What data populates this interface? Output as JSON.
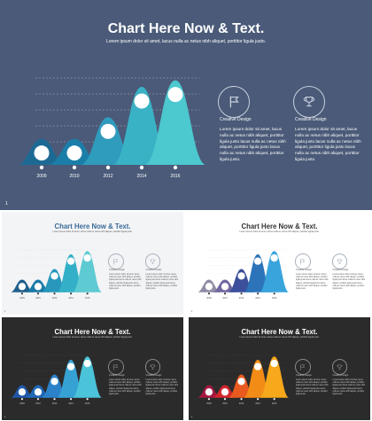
{
  "title": "Chart Here Now & Text.",
  "subtitle": "Lorem ipsum dolor sit amet, lacus nulla ac netus nibh aliquet, porttitor ligula justo.",
  "years": [
    "2009",
    "2010",
    "2012",
    "2014",
    "2016"
  ],
  "columns": [
    {
      "icon": "flag-icon",
      "label": "Creative Design",
      "body": "Lorem ipsum dolor sit amet, lacus nulla ac netus nibh aliquet, porttitor ligula justo lacus nulla ac netus nibh aliquet, porttitor ligula justo lacus nulla ac netus nibh aliquet, porttitor ligula justo."
    },
    {
      "icon": "trophy-icon",
      "label": "Creative Design",
      "body": "Lorem ipsum dolor sit amet, lacus nulla ac netus nibh aliquet, porttitor ligula justo lacus nulla ac netus nibh aliquet, porttitor ligula justo lacus nulla ac netus nibh aliquet, porttitor ligula justo."
    }
  ],
  "page_number": "1",
  "chart_data": {
    "type": "area",
    "categories": [
      "2009",
      "2010",
      "2012",
      "2014",
      "2016"
    ],
    "values": [
      1.2,
      1.2,
      2.2,
      3.6,
      3.9
    ],
    "ylim": [
      0,
      4.5
    ],
    "grid": true
  },
  "slides": [
    {
      "name": "slide-main-slate",
      "bg": "#4a5a78",
      "title_color": "#ffffff",
      "text_color": "#ffffff",
      "grid_color": "#8a97b0",
      "dot_color": "#ffffff",
      "icon_ring": "#c9d0de",
      "peaks": [
        "#1c6a94",
        "#1b7ea8",
        "#2f9bbd",
        "#3ab2c6",
        "#4cc8cf"
      ]
    },
    {
      "name": "slide-light-blue",
      "bg": "#f3f4f6",
      "title_color": "#3a6b96",
      "text_color": "#555555",
      "grid_color": "#d8dce2",
      "dot_color": "#333333",
      "icon_ring": "#aab2bd",
      "peaks": [
        "#1f5f8b",
        "#1a7aa6",
        "#2797bb",
        "#33b0c7",
        "#5ecad2"
      ]
    },
    {
      "name": "slide-white-purple",
      "bg": "#ffffff",
      "title_color": "#333333",
      "text_color": "#555555",
      "grid_color": "#e0e0e0",
      "dot_color": "#333333",
      "icon_ring": "#aab2bd",
      "peaks": [
        "#8f8ca6",
        "#7167a0",
        "#3b4f9a",
        "#2c73b9",
        "#39a4dc"
      ]
    },
    {
      "name": "slide-dark-blue",
      "bg": "#2b2b2b",
      "title_color": "#ffffff",
      "text_color": "#cccccc",
      "grid_color": "#4a4a4a",
      "dot_color": "#ffffff",
      "icon_ring": "#888888",
      "peaks": [
        "#1f58a8",
        "#2068b8",
        "#2b82c9",
        "#36a2d4",
        "#4bc3d8"
      ]
    },
    {
      "name": "slide-dark-warm",
      "bg": "#2b2b2b",
      "title_color": "#ffffff",
      "text_color": "#cccccc",
      "grid_color": "#4a4a4a",
      "dot_color": "#ffffff",
      "icon_ring": "#888888",
      "peaks": [
        "#a5173f",
        "#d2262d",
        "#ea5a1f",
        "#f28c16",
        "#f7a81b"
      ]
    }
  ]
}
